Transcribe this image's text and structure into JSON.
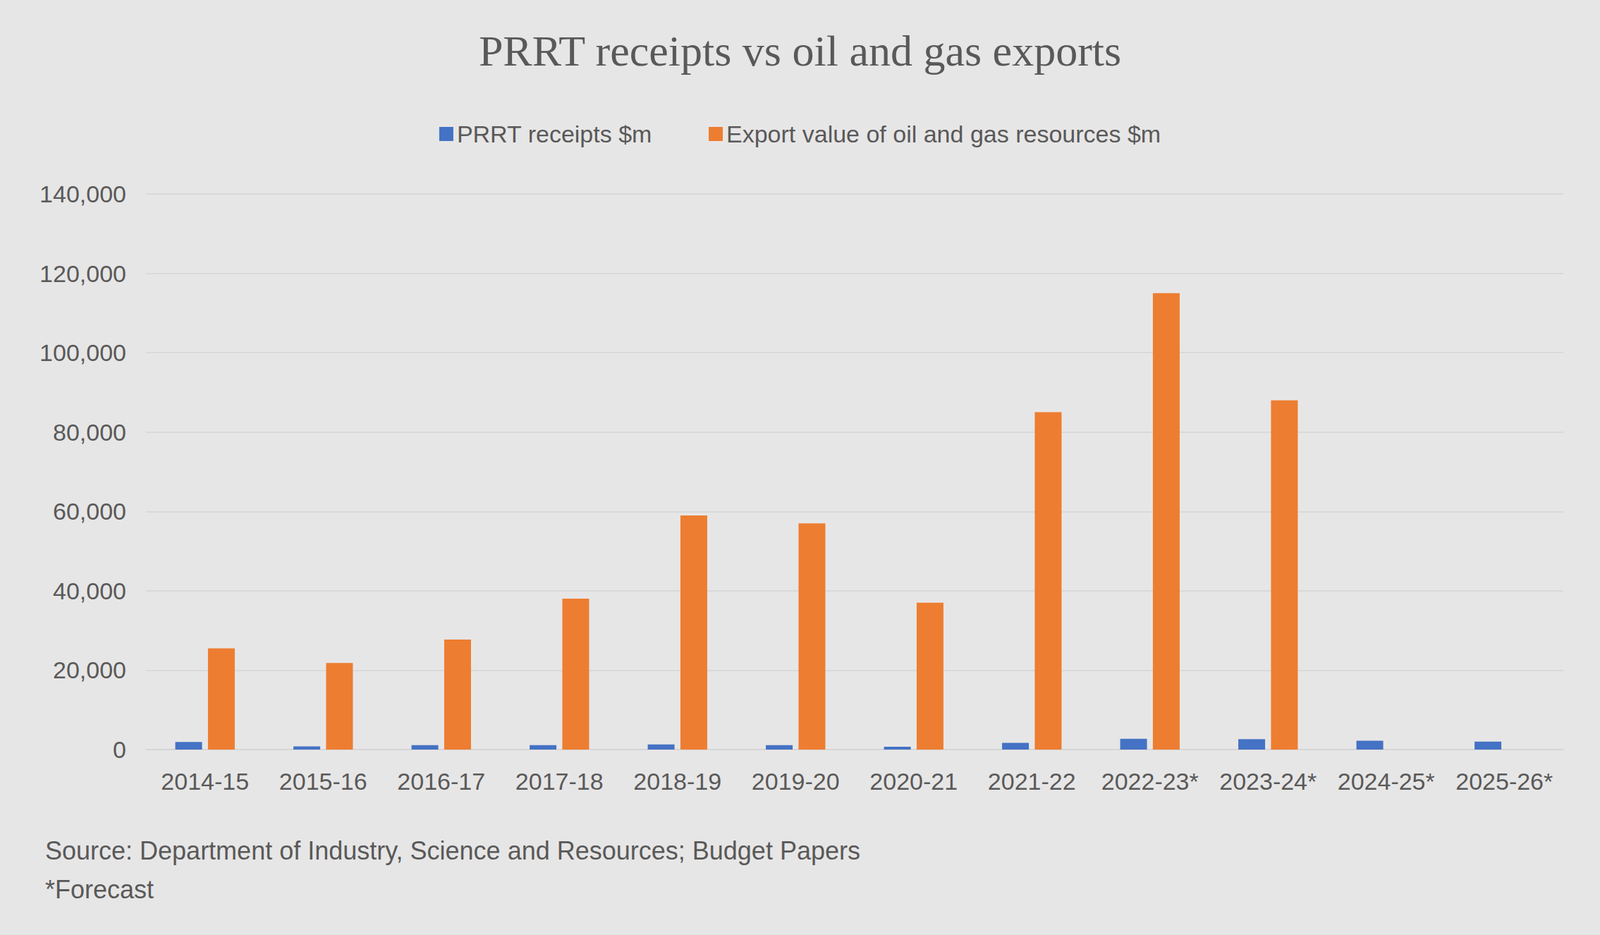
{
  "chart_data": {
    "type": "bar",
    "title": "PRRT receipts vs oil and gas exports",
    "categories": [
      "2014-15",
      "2015-16",
      "2016-17",
      "2017-18",
      "2018-19",
      "2019-20",
      "2020-21",
      "2021-22",
      "2022-23*",
      "2023-24*",
      "2024-25*",
      "2025-26*"
    ],
    "series": [
      {
        "name": "PRRT receipts $m",
        "color": "#4472c4",
        "values": [
          1900,
          800,
          1100,
          1100,
          1300,
          1100,
          700,
          1700,
          2700,
          2600,
          2200,
          2000
        ]
      },
      {
        "name": "Export value of oil and gas resources $m",
        "color": "#ed7d31",
        "values": [
          25500,
          21800,
          27700,
          38000,
          59000,
          57000,
          37000,
          85000,
          115000,
          88000,
          null,
          null
        ]
      }
    ],
    "ylim": [
      0,
      140000
    ],
    "yticks": [
      0,
      {
        "value": 20000,
        "label": "20,000"
      },
      {
        "value": 40000,
        "label": "40,000"
      },
      {
        "value": 60000,
        "label": "60,000"
      },
      {
        "value": 80000,
        "label": "80,000"
      },
      {
        "value": 100000,
        "label": "100,000"
      },
      {
        "value": 120000,
        "label": "120,000"
      },
      {
        "value": 140000,
        "label": "140,000"
      }
    ],
    "grid": true,
    "legend": "top",
    "annotations": [
      "Source: Department of Industry, Science and Resources; Budget Papers",
      "*Forecast"
    ]
  }
}
